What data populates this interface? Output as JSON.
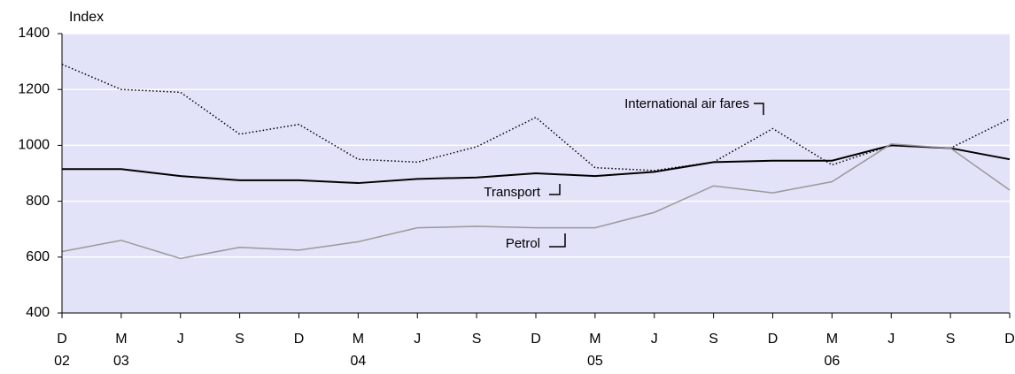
{
  "chart_data": {
    "type": "line",
    "y_axis_label": "Index",
    "categories": [
      "D",
      "M",
      "J",
      "S",
      "D",
      "M",
      "J",
      "S",
      "D",
      "M",
      "J",
      "S",
      "D",
      "M",
      "J",
      "S",
      "D"
    ],
    "year_labels": [
      "02",
      "03",
      null,
      null,
      null,
      "04",
      null,
      null,
      null,
      "05",
      null,
      null,
      null,
      "06",
      null,
      null,
      null
    ],
    "series": [
      {
        "name": "International air fares",
        "color": "#000000",
        "style": "dotted",
        "values": [
          1290,
          1200,
          1190,
          1040,
          1075,
          950,
          940,
          995,
          1100,
          920,
          910,
          940,
          1060,
          930,
          1000,
          990,
          1095
        ]
      },
      {
        "name": "Transport",
        "color": "#000000",
        "style": "solid",
        "values": [
          915,
          915,
          890,
          875,
          875,
          865,
          880,
          885,
          900,
          890,
          905,
          940,
          945,
          945,
          1000,
          990,
          950
        ]
      },
      {
        "name": "Petrol",
        "color": "#999999",
        "style": "solid",
        "values": [
          620,
          660,
          595,
          635,
          625,
          655,
          705,
          710,
          705,
          705,
          760,
          855,
          830,
          870,
          1005,
          990,
          840
        ]
      }
    ],
    "ylim": [
      400,
      1400
    ],
    "yticks": [
      400,
      600,
      800,
      1000,
      1200,
      1400
    ],
    "grid": true,
    "background": "#e2e2f8"
  }
}
